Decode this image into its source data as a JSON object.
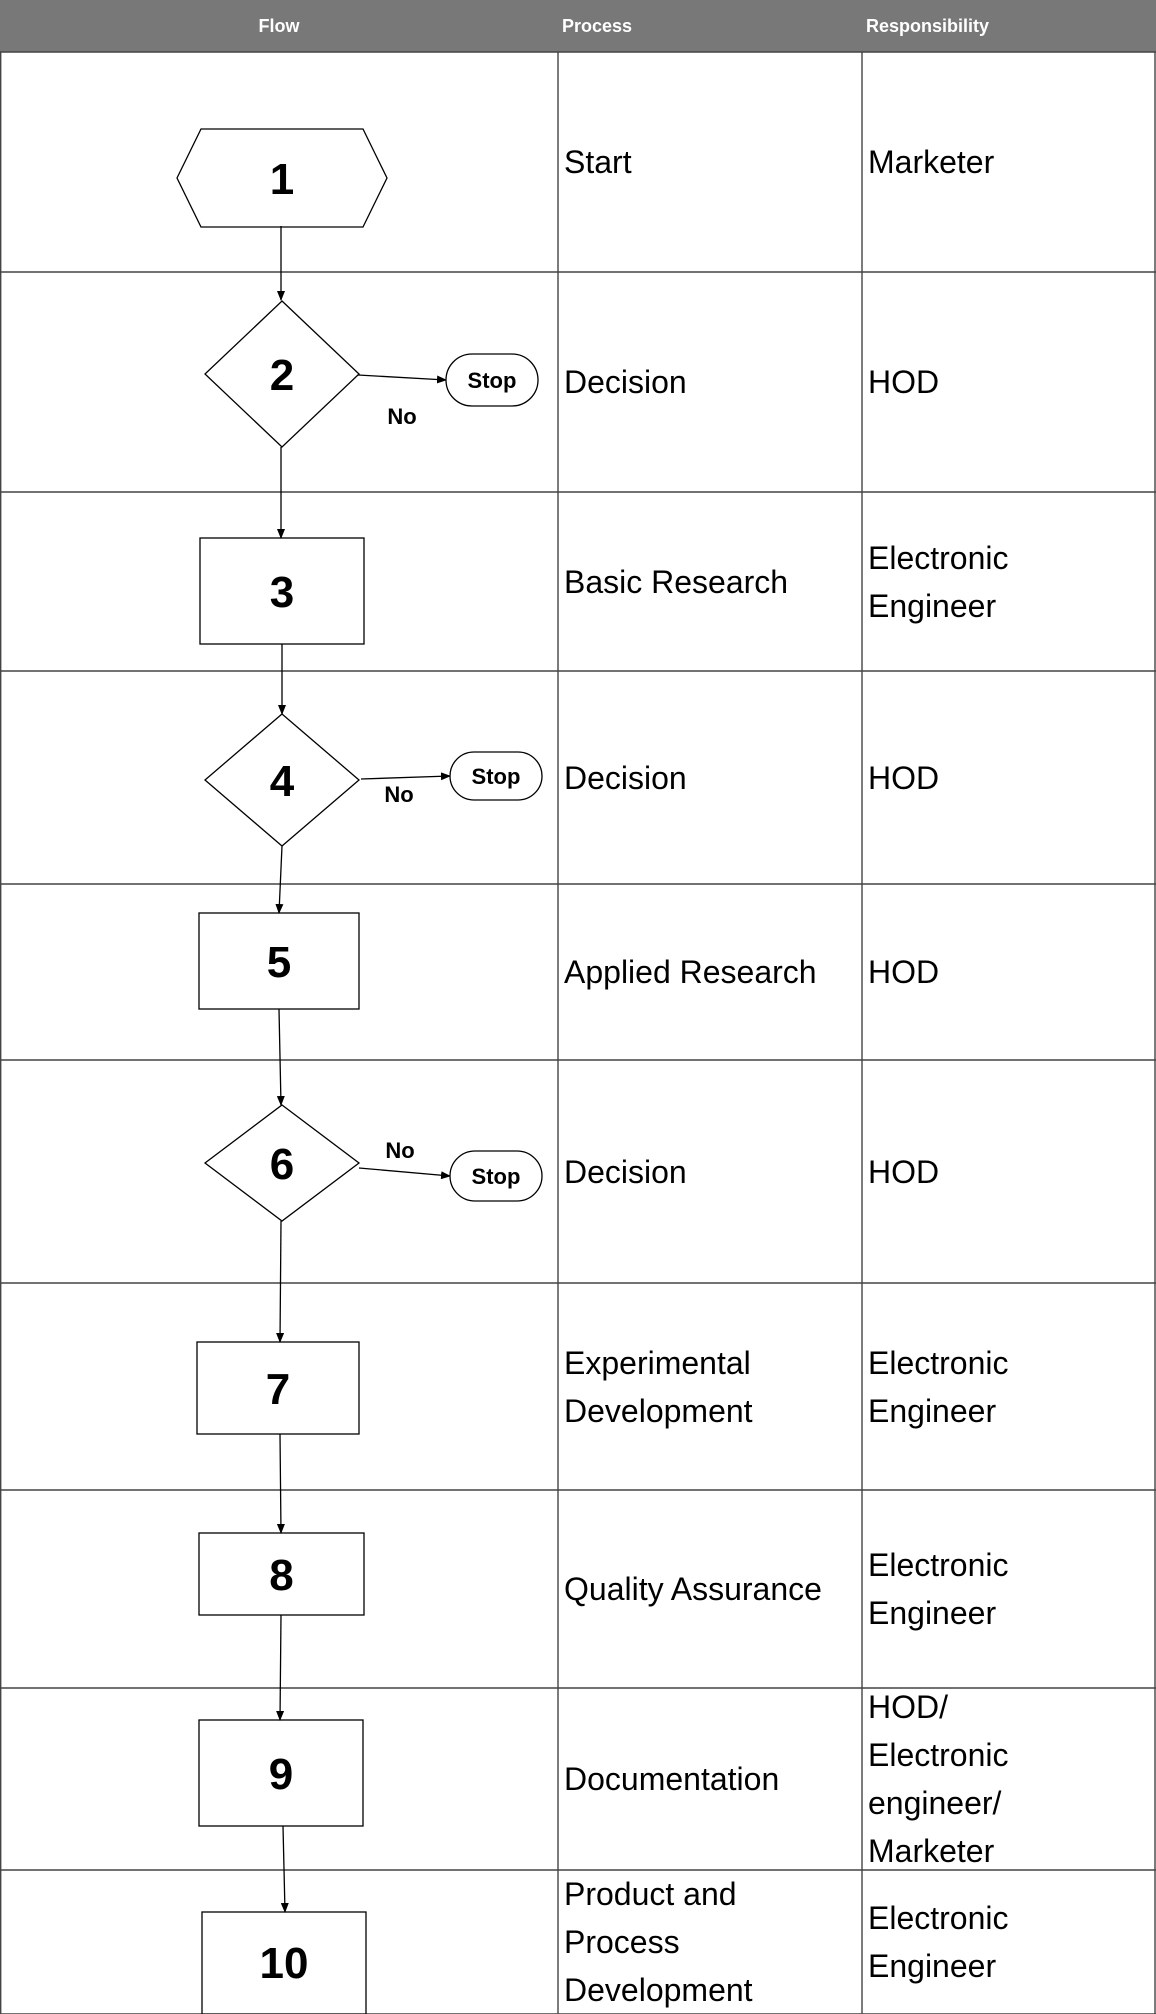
{
  "headers": {
    "flow": "Flow",
    "process": "Process",
    "responsibility": "Responsibility"
  },
  "rows": [
    {
      "step": "1",
      "shape": "hexagon",
      "process": "Start",
      "responsibility": "Marketer"
    },
    {
      "step": "2",
      "shape": "decision",
      "process": "Decision",
      "responsibility": "HOD",
      "stop_label": "Stop",
      "no_label": "No"
    },
    {
      "step": "3",
      "shape": "process",
      "process": "Basic Research",
      "responsibility": "Electronic\nEngineer"
    },
    {
      "step": "4",
      "shape": "decision",
      "process": "Decision",
      "responsibility": "HOD",
      "stop_label": "Stop",
      "no_label": "No"
    },
    {
      "step": "5",
      "shape": "process",
      "process": "Applied Research",
      "responsibility": "HOD"
    },
    {
      "step": "6",
      "shape": "decision",
      "process": "Decision",
      "responsibility": "HOD",
      "stop_label": "Stop",
      "no_label": "No"
    },
    {
      "step": "7",
      "shape": "process",
      "process": "Experimental\nDevelopment",
      "responsibility": "Electronic\nEngineer"
    },
    {
      "step": "8",
      "shape": "process",
      "process": "Quality Assurance",
      "responsibility": "Electronic\nEngineer"
    },
    {
      "step": "9",
      "shape": "process",
      "process": "Documentation",
      "responsibility": "HOD/\nElectronic\nengineer/\nMarketer"
    },
    {
      "step": "10",
      "shape": "process",
      "process": "Product and\nProcess\nDevelopment",
      "responsibility": "Electronic\nEngineer"
    }
  ]
}
